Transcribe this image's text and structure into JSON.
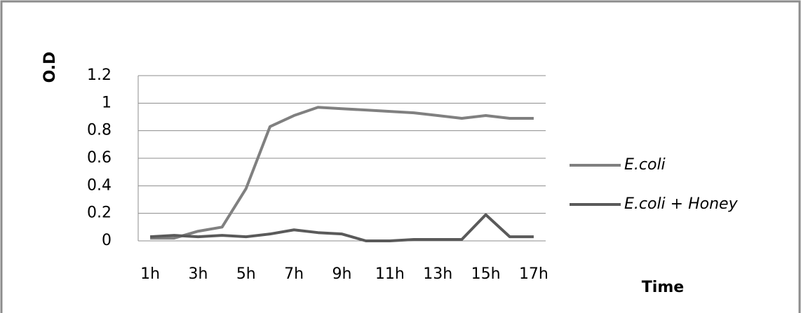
{
  "chart_data": {
    "type": "line",
    "x_label": "Time",
    "y_label": "O.D",
    "categories": [
      "1h",
      null,
      "3h",
      null,
      "5h",
      null,
      "7h",
      null,
      "9h",
      null,
      "11h",
      null,
      "13h",
      null,
      "15h",
      null,
      "17h"
    ],
    "series": [
      {
        "name": "E.coli",
        "color": "#808080",
        "values": [
          0.02,
          0.02,
          0.07,
          0.1,
          0.38,
          0.83,
          0.91,
          0.97,
          0.96,
          0.95,
          0.94,
          0.93,
          0.91,
          0.89,
          0.91,
          0.89,
          0.89
        ]
      },
      {
        "name": "E.coli + Honey",
        "color": "#5a5a5a",
        "values": [
          0.03,
          0.04,
          0.03,
          0.04,
          0.03,
          0.05,
          0.08,
          0.06,
          0.05,
          0,
          0,
          0.01,
          0.01,
          0.01,
          0.19,
          0.03,
          0.03
        ]
      }
    ],
    "ylim": [
      0,
      1.2
    ],
    "yticks": [
      0,
      0.2,
      0.4,
      0.6,
      0.8,
      1,
      1.2
    ],
    "grid": true,
    "legend": "right"
  }
}
